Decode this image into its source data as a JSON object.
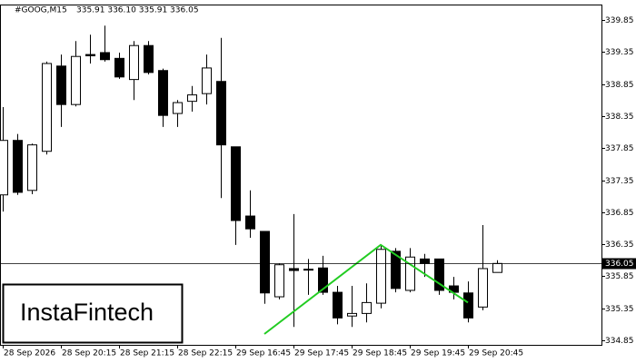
{
  "chart_data": {
    "type": "candlestick",
    "title": "#GOOG,M15",
    "subtitle": "335.91 336.10 335.91 336.05",
    "categories": [
      "28 Sep 2026",
      null,
      null,
      null,
      "28 Sep 20:15",
      null,
      null,
      null,
      "28 Sep 21:15",
      null,
      null,
      null,
      "28 Sep 22:15",
      null,
      null,
      null,
      "29 Sep 16:45",
      null,
      null,
      null,
      "29 Sep 17:45",
      null,
      null,
      null,
      "29 Sep 18:45",
      null,
      null,
      null,
      "29 Sep 19:45",
      null,
      null,
      null,
      "29 Sep 20:45",
      null,
      null
    ],
    "open": [
      337.12,
      337.97,
      337.19,
      337.8,
      339.13,
      338.53,
      339.31,
      339.34,
      339.25,
      338.92,
      339.45,
      339.06,
      338.39,
      338.58,
      338.7,
      338.89,
      337.87,
      336.79,
      336.55,
      335.53,
      335.97,
      335.95,
      335.98,
      335.6,
      335.23,
      335.27,
      335.43,
      336.24,
      335.63,
      336.12,
      336.12,
      335.7,
      335.59,
      335.37,
      335.91
    ],
    "high": [
      338.49,
      338.07,
      337.92,
      339.2,
      339.31,
      339.52,
      339.62,
      339.76,
      339.34,
      339.52,
      339.52,
      339.09,
      338.6,
      338.82,
      339.31,
      339.57,
      337.87,
      337.19,
      336.55,
      336.05,
      336.82,
      336.12,
      336.17,
      335.7,
      335.7,
      335.74,
      336.34,
      336.29,
      336.29,
      336.2,
      336.12,
      335.84,
      335.77,
      336.65,
      336.1
    ],
    "low": [
      336.86,
      337.12,
      337.13,
      337.75,
      338.18,
      338.5,
      339.17,
      339.2,
      338.93,
      338.6,
      339.0,
      338.18,
      338.18,
      338.42,
      338.53,
      337.07,
      336.34,
      336.45,
      335.42,
      335.49,
      335.06,
      335.56,
      335.56,
      335.1,
      335.06,
      335.13,
      335.35,
      335.6,
      335.6,
      335.84,
      335.56,
      335.49,
      335.13,
      335.32,
      335.91
    ],
    "close": [
      337.97,
      337.16,
      337.9,
      339.17,
      338.53,
      339.28,
      339.29,
      339.23,
      338.96,
      339.45,
      339.03,
      338.36,
      338.56,
      338.68,
      339.1,
      337.9,
      336.72,
      336.59,
      335.59,
      336.03,
      335.94,
      335.96,
      335.6,
      335.2,
      335.27,
      335.44,
      336.27,
      335.66,
      336.15,
      336.05,
      335.63,
      335.6,
      335.2,
      335.97,
      336.05
    ],
    "up_color": "#ffffff",
    "down_color": "#000000",
    "ylim": [
      334.78,
      340.09
    ],
    "yticks": [
      334.85,
      335.35,
      335.85,
      336.35,
      336.85,
      337.35,
      337.85,
      338.35,
      338.85,
      339.35,
      339.85
    ],
    "current_price": 336.05,
    "pattern": {
      "color": "#22cc22",
      "x": [
        18,
        26,
        32
      ],
      "values": [
        334.95,
        336.34,
        335.44
      ]
    },
    "watermark": "InstaFintech"
  }
}
